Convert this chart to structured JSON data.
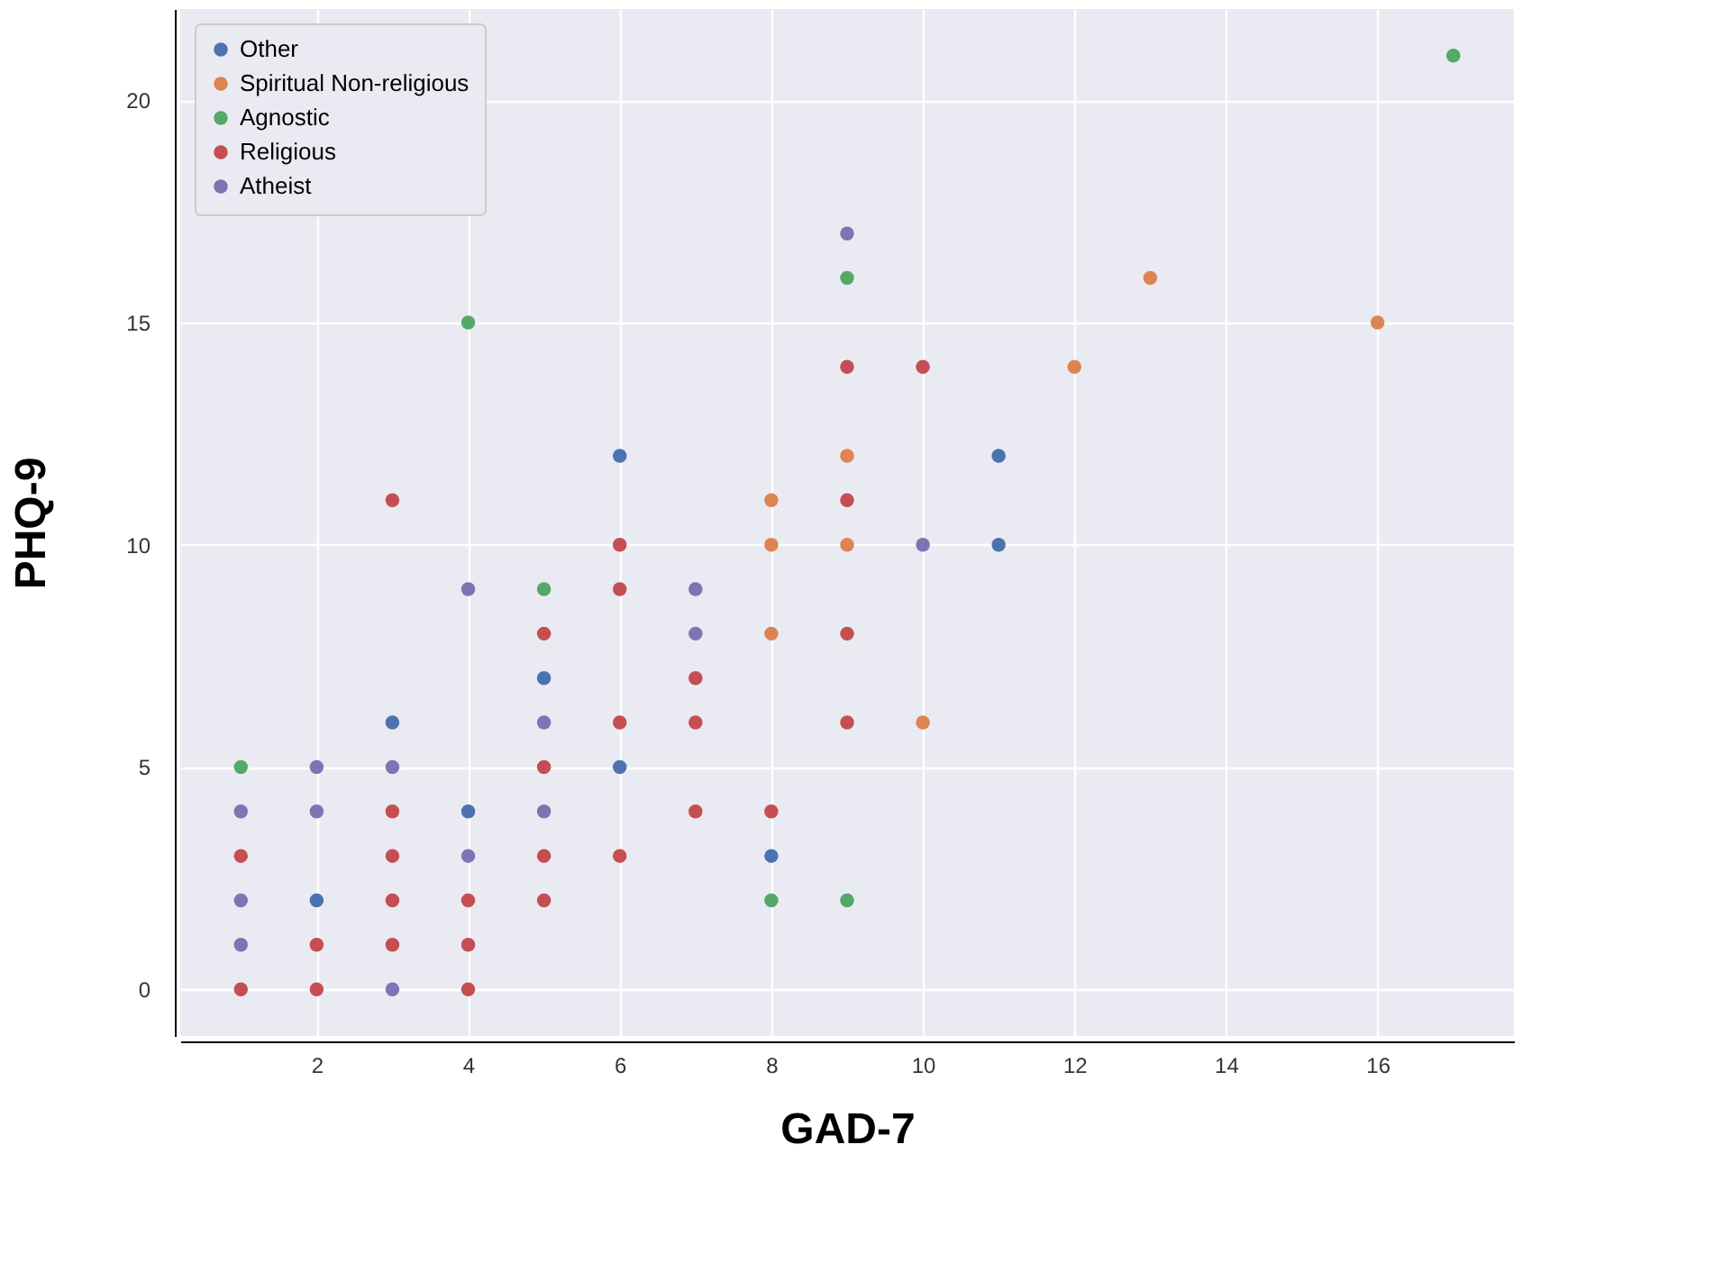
{
  "chart_data": {
    "type": "scatter",
    "xlabel": "GAD-7",
    "ylabel": "PHQ-9",
    "xlim": [
      0.2,
      17.8
    ],
    "ylim": [
      -1.05,
      22.05
    ],
    "xticks": [
      2,
      4,
      6,
      8,
      10,
      12,
      14,
      16
    ],
    "yticks": [
      0,
      5,
      10,
      15,
      20
    ],
    "grid": true,
    "legend": "top left",
    "marker": "circle",
    "series": [
      {
        "name": "Other",
        "color": "#4c72b0",
        "x": [
          2,
          3,
          4,
          5,
          6,
          6,
          8,
          11,
          11
        ],
        "values": [
          2,
          6,
          4,
          7,
          12,
          5,
          3,
          12,
          10
        ]
      },
      {
        "name": "Spiritual Non-religious",
        "color": "#dd8452",
        "x": [
          8,
          8,
          8,
          9,
          9,
          10,
          12,
          13,
          16
        ],
        "values": [
          11,
          10,
          8,
          12,
          10,
          6,
          14,
          16,
          15
        ]
      },
      {
        "name": "Agnostic",
        "color": "#55a868",
        "x": [
          1,
          4,
          5,
          8,
          9,
          9,
          17
        ],
        "values": [
          5,
          15,
          9,
          2,
          16,
          2,
          21
        ]
      },
      {
        "name": "Religious",
        "color": "#c44e52",
        "x": [
          1,
          1,
          2,
          2,
          3,
          3,
          3,
          3,
          3,
          4,
          4,
          4,
          5,
          5,
          5,
          5,
          6,
          6,
          6,
          6,
          7,
          7,
          7,
          8,
          9,
          9,
          9,
          9,
          10
        ],
        "values": [
          3,
          0,
          1,
          0,
          11,
          4,
          3,
          2,
          1,
          2,
          1,
          0,
          8,
          5,
          3,
          2,
          10,
          9,
          6,
          3,
          7,
          6,
          4,
          4,
          14,
          11,
          8,
          6,
          14
        ]
      },
      {
        "name": "Atheist",
        "color": "#8172b3",
        "x": [
          1,
          1,
          1,
          2,
          2,
          3,
          3,
          4,
          4,
          5,
          5,
          7,
          7,
          9,
          10
        ],
        "values": [
          4,
          2,
          1,
          5,
          4,
          5,
          0,
          3,
          9,
          6,
          4,
          9,
          8,
          17,
          10
        ]
      }
    ]
  }
}
